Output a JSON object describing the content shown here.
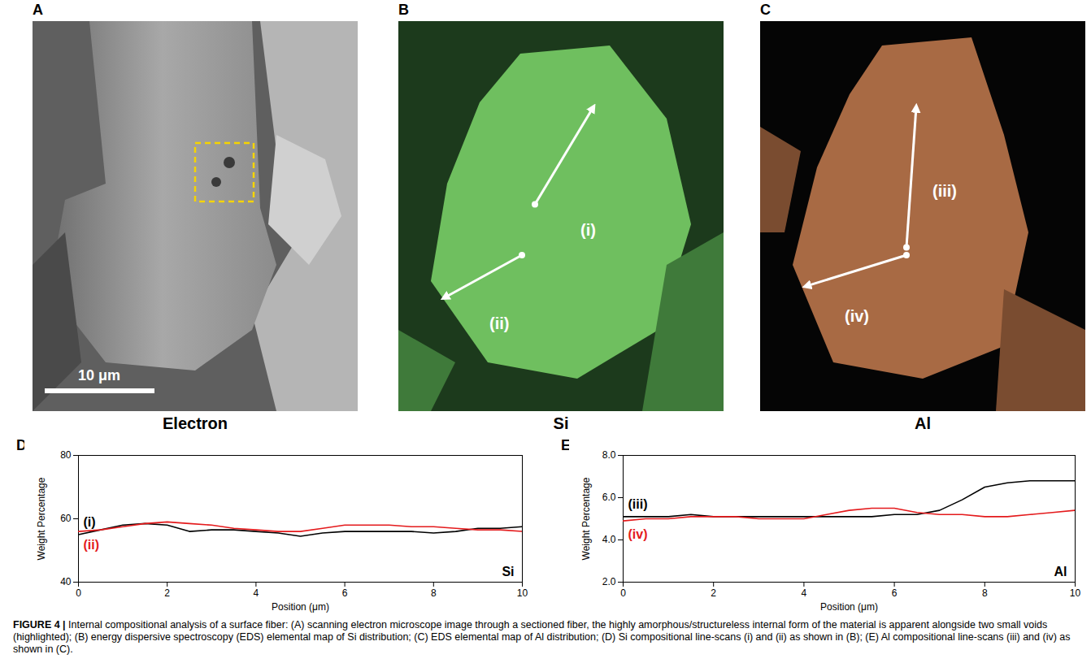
{
  "figure": {
    "panels": [
      {
        "letter": "A",
        "label": "Electron",
        "scale_bar": "10 μm"
      },
      {
        "letter": "B",
        "label": "Si",
        "arrows": [
          "(i)",
          "(ii)"
        ]
      },
      {
        "letter": "C",
        "label": "Al",
        "arrows": [
          "(iii)",
          "(iv)"
        ]
      }
    ],
    "caption_label": "FIGURE 4 |",
    "caption": "Internal compositional analysis of a surface fiber: (A) scanning electron microscope image through a sectioned fiber, the highly amorphous/structureless internal form of the material is apparent alongside two small voids (highlighted); (B) energy dispersive spectroscopy (EDS) elemental map of Si distribution; (C) EDS elemental map of Al distribution; (D) Si compositional line-scans (i) and (ii) as shown in (B); (E) Al compositional line-scans (iii) and (iv) as shown in (C)."
  },
  "chart_data": [
    {
      "type": "line",
      "panel": "D",
      "annotation": "Si",
      "xlabel": "Position (μm)",
      "ylabel": "Weight Percentage",
      "x": [
        0,
        0.5,
        1,
        1.5,
        2,
        2.5,
        3,
        3.5,
        4,
        4.5,
        5,
        5.5,
        6,
        6.5,
        7,
        7.5,
        8,
        8.5,
        9,
        9.5,
        10
      ],
      "xlim": [
        0,
        10
      ],
      "xticks": [
        0,
        2,
        4,
        6,
        8,
        10
      ],
      "ylim": [
        40,
        80
      ],
      "yticks": [
        40,
        60,
        80
      ],
      "series": [
        {
          "name": "(i)",
          "color": "#000000",
          "values": [
            55,
            56.5,
            58,
            58.5,
            58,
            56,
            56.5,
            56.5,
            56,
            55.5,
            54.5,
            55.5,
            56,
            56,
            56,
            56,
            55.5,
            56,
            57,
            57,
            57.5
          ]
        },
        {
          "name": "(ii)",
          "color": "#e41a1c",
          "values": [
            56,
            56.5,
            57.5,
            58.5,
            59,
            58.5,
            58,
            57,
            56.5,
            56,
            56,
            57,
            58,
            58,
            58,
            57.5,
            57.5,
            57,
            56.5,
            56.5,
            56
          ]
        }
      ]
    },
    {
      "type": "line",
      "panel": "E",
      "annotation": "Al",
      "xlabel": "Position (μm)",
      "ylabel": "Weight Percentage",
      "x": [
        0,
        0.5,
        1,
        1.5,
        2,
        2.5,
        3,
        3.5,
        4,
        4.5,
        5,
        5.5,
        6,
        6.5,
        7,
        7.5,
        8,
        8.5,
        9,
        9.5,
        10
      ],
      "xlim": [
        0,
        10
      ],
      "xticks": [
        0,
        2,
        4,
        6,
        8,
        10
      ],
      "ylim": [
        2,
        8
      ],
      "yticks": [
        2,
        4,
        6,
        8
      ],
      "series": [
        {
          "name": "(iii)",
          "color": "#000000",
          "values": [
            5.1,
            5.1,
            5.1,
            5.2,
            5.1,
            5.1,
            5.1,
            5.1,
            5.1,
            5.1,
            5.1,
            5.1,
            5.2,
            5.2,
            5.4,
            5.9,
            6.5,
            6.7,
            6.8,
            6.8,
            6.8
          ]
        },
        {
          "name": "(iv)",
          "color": "#e41a1c",
          "values": [
            4.9,
            5.0,
            5.0,
            5.1,
            5.1,
            5.1,
            5.0,
            5.0,
            5.0,
            5.2,
            5.4,
            5.5,
            5.5,
            5.3,
            5.2,
            5.2,
            5.1,
            5.1,
            5.2,
            5.3,
            5.4
          ]
        }
      ]
    }
  ]
}
